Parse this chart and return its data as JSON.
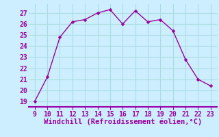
{
  "x": [
    9,
    10,
    11,
    12,
    13,
    14,
    15,
    16,
    17,
    18,
    19,
    20,
    21,
    22,
    23
  ],
  "y": [
    19.0,
    21.2,
    24.8,
    26.2,
    26.4,
    27.0,
    27.3,
    26.0,
    27.2,
    26.2,
    26.4,
    25.4,
    22.8,
    21.0,
    20.4
  ],
  "line_color": "#990099",
  "marker": "D",
  "marker_size": 2.5,
  "bg_color": "#cceeff",
  "grid_color": "#aadddd",
  "border_color": "#9900aa",
  "xlabel": "Windchill (Refroidissement éolien,°C)",
  "xlabel_color": "#990099",
  "xlabel_fontsize": 7.5,
  "tick_label_color": "#990099",
  "tick_fontsize": 7,
  "xlim": [
    8.5,
    23.5
  ],
  "ylim": [
    18.5,
    27.8
  ],
  "yticks": [
    19,
    20,
    21,
    22,
    23,
    24,
    25,
    26,
    27
  ],
  "xticks": [
    9,
    10,
    11,
    12,
    13,
    14,
    15,
    16,
    17,
    18,
    19,
    20,
    21,
    22,
    23
  ]
}
